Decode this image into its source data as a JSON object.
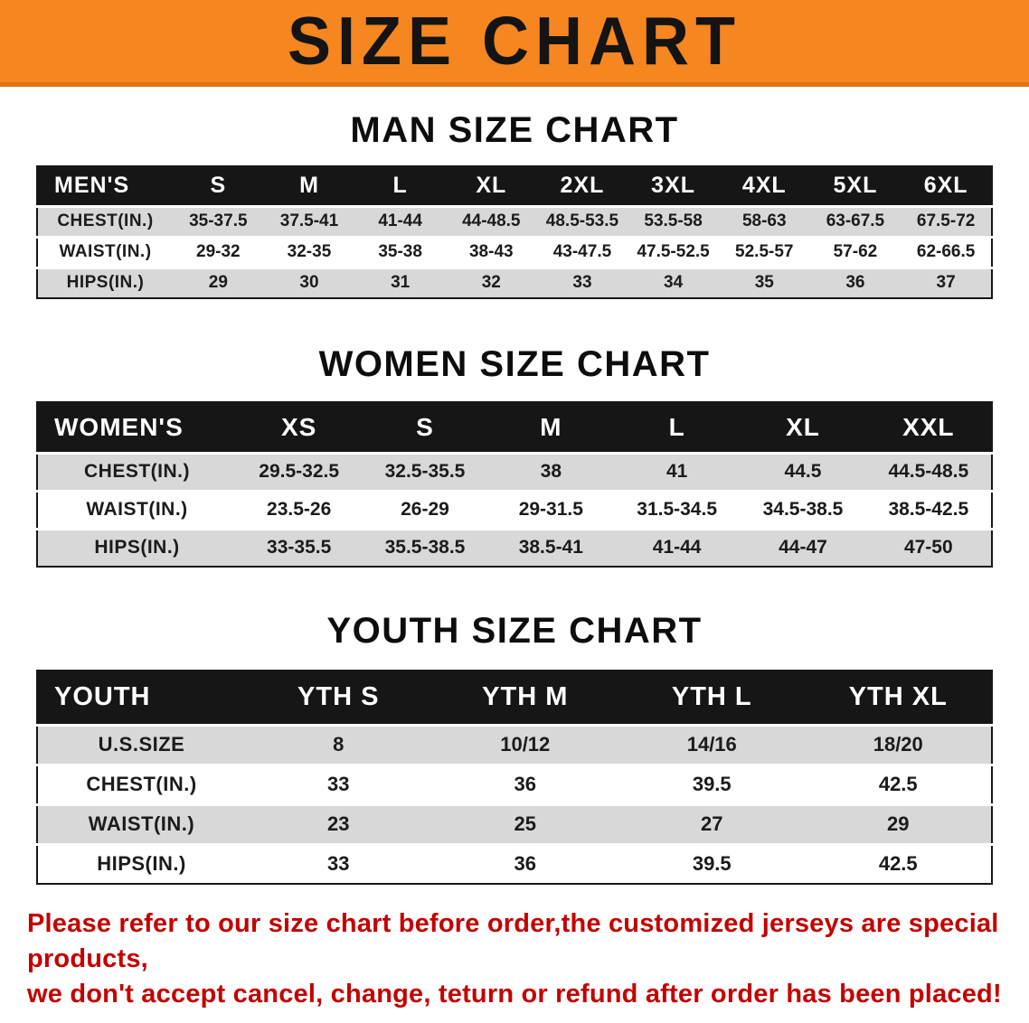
{
  "banner": {
    "title": "SIZE CHART"
  },
  "colors": {
    "banner_bg": "#f6861f",
    "table_header_bg": "#161616",
    "row_stripe_bg": "#d8d8d8",
    "disclaimer_red": "#c40000"
  },
  "men": {
    "heading": "MAN SIZE CHART",
    "table": {
      "header": [
        "MEN'S",
        "S",
        "M",
        "L",
        "XL",
        "2XL",
        "3XL",
        "4XL",
        "5XL",
        "6XL"
      ],
      "rows": [
        [
          "CHEST(IN.)",
          "35-37.5",
          "37.5-41",
          "41-44",
          "44-48.5",
          "48.5-53.5",
          "53.5-58",
          "58-63",
          "63-67.5",
          "67.5-72"
        ],
        [
          "WAIST(IN.)",
          "29-32",
          "32-35",
          "35-38",
          "38-43",
          "43-47.5",
          "47.5-52.5",
          "52.5-57",
          "57-62",
          "62-66.5"
        ],
        [
          "HIPS(IN.)",
          "29",
          "30",
          "31",
          "32",
          "33",
          "34",
          "35",
          "36",
          "37"
        ]
      ]
    }
  },
  "women": {
    "heading": "WOMEN SIZE CHART",
    "table": {
      "header": [
        "WOMEN'S",
        "XS",
        "S",
        "M",
        "L",
        "XL",
        "XXL"
      ],
      "rows": [
        [
          "CHEST(IN.)",
          "29.5-32.5",
          "32.5-35.5",
          "38",
          "41",
          "44.5",
          "44.5-48.5"
        ],
        [
          "WAIST(IN.)",
          "23.5-26",
          "26-29",
          "29-31.5",
          "31.5-34.5",
          "34.5-38.5",
          "38.5-42.5"
        ],
        [
          "HIPS(IN.)",
          "33-35.5",
          "35.5-38.5",
          "38.5-41",
          "41-44",
          "44-47",
          "47-50"
        ]
      ]
    }
  },
  "youth": {
    "heading": "YOUTH SIZE CHART",
    "table": {
      "header": [
        "YOUTH",
        "YTH S",
        "YTH M",
        "YTH L",
        "YTH XL"
      ],
      "rows": [
        [
          "U.S.SIZE",
          "8",
          "10/12",
          "14/16",
          "18/20"
        ],
        [
          "CHEST(IN.)",
          "33",
          "36",
          "39.5",
          "42.5"
        ],
        [
          "WAIST(IN.)",
          "23",
          "25",
          "27",
          "29"
        ],
        [
          "HIPS(IN.)",
          "33",
          "36",
          "39.5",
          "42.5"
        ]
      ]
    }
  },
  "disclaimer": {
    "line1": "Please refer to our size chart before order,the customized jerseys are special products,",
    "line2": "we don't accept cancel, change, teturn or refund after order has been placed!"
  }
}
